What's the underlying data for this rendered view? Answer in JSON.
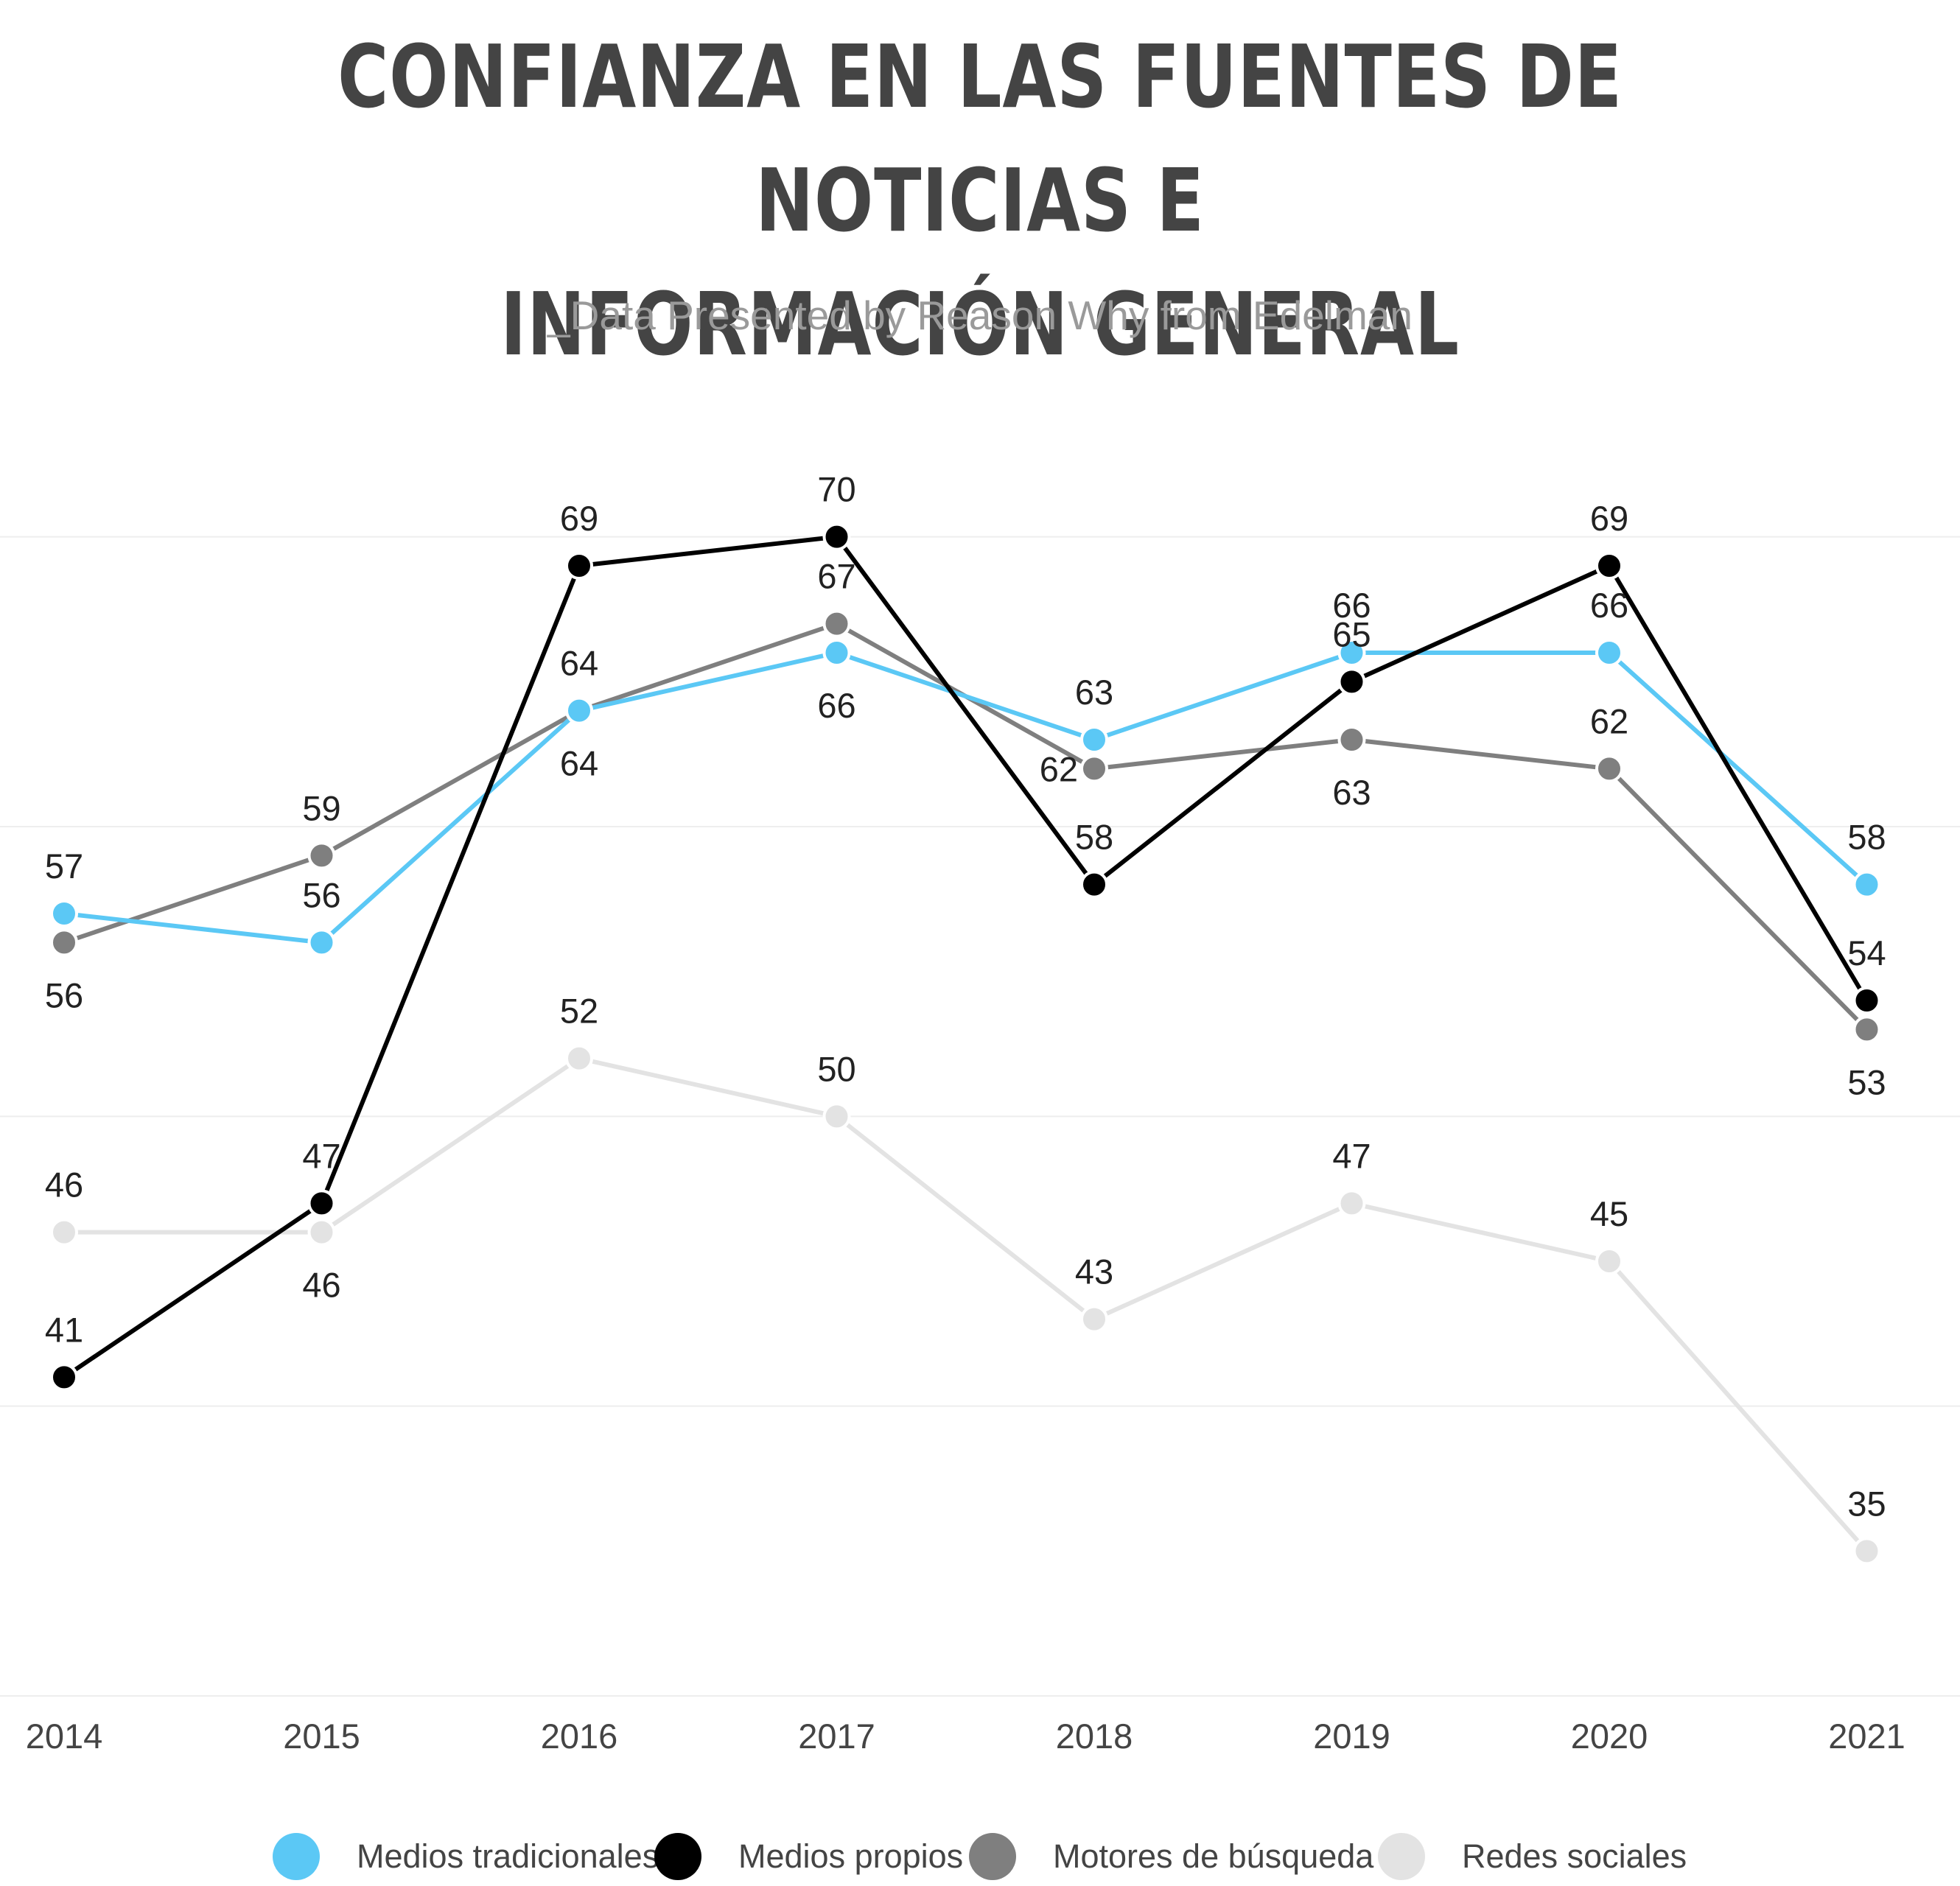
{
  "chart_data": {
    "type": "line",
    "title": "CONFIANZA EN LAS FUENTES DE NOTICIAS E INFORMACIÓN GENERAL",
    "title_lines": [
      "CONFIANZA EN LAS FUENTES DE NOTICIAS E",
      "INFORMACIÓN GENERAL"
    ],
    "subtitle": "_Data Presented by Reason Why from Edelman",
    "xlabel": "",
    "ylabel": "",
    "categories": [
      "2014",
      "2015",
      "2016",
      "2017",
      "2018",
      "2019",
      "2020",
      "2021"
    ],
    "ylim": [
      30,
      72
    ],
    "gridlines": [
      30,
      40,
      50,
      60,
      70
    ],
    "grid": true,
    "legend_position": "bottom",
    "series": [
      {
        "name": "Medios tradicionales",
        "color": "#5bc8f5",
        "values": [
          57,
          56,
          64,
          66,
          63,
          66,
          66,
          58
        ],
        "label_pos": [
          "above",
          "above",
          "below",
          "below",
          "above",
          "above",
          "above",
          "above"
        ]
      },
      {
        "name": "Medios propios",
        "color": "#000000",
        "values": [
          41,
          47,
          69,
          70,
          58,
          65,
          69,
          54
        ],
        "label_pos": [
          "above",
          "above",
          "above",
          "above",
          "above",
          "above",
          "above",
          "above"
        ]
      },
      {
        "name": "Motores de búsqueda",
        "color": "#7f7f7f",
        "values": [
          56,
          59,
          64,
          67,
          62,
          63,
          62,
          53
        ],
        "label_pos": [
          "below",
          "above",
          "above",
          "above",
          "left",
          "below",
          "above",
          "below"
        ]
      },
      {
        "name": "Redes sociales",
        "color": "#e3e3e3",
        "values": [
          46,
          46,
          52,
          50,
          43,
          47,
          45,
          35
        ],
        "label_pos": [
          "above",
          "below",
          "above",
          "above",
          "above",
          "above",
          "above",
          "above"
        ]
      }
    ]
  }
}
